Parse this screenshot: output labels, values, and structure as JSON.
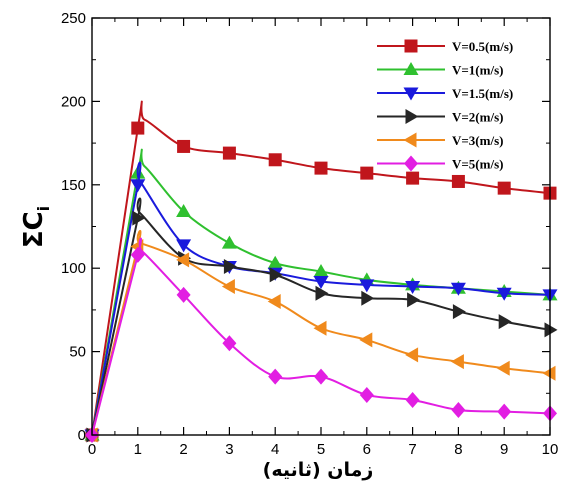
{
  "chart_data": {
    "type": "line",
    "title": "",
    "xlabel": "زمان (ثانیه)",
    "ylabel": "ΣC",
    "ylabel_subscript": "i",
    "xlim": [
      0,
      10
    ],
    "ylim": [
      0,
      250
    ],
    "xticks": [
      "0",
      "1",
      "2",
      "3",
      "4",
      "5",
      "6",
      "7",
      "8",
      "9",
      "10"
    ],
    "yticks": [
      "0",
      "50",
      "100",
      "150",
      "200",
      "250"
    ],
    "grid": false,
    "legend_position": "top-right",
    "series": [
      {
        "name": "V=0.5(m/s)",
        "color": "#c0161c",
        "marker": "square",
        "x": [
          0,
          1,
          2,
          3,
          4,
          5,
          6,
          7,
          8,
          9,
          10
        ],
        "y": [
          0,
          184,
          173,
          169,
          165,
          160,
          157,
          154,
          152,
          148,
          145
        ],
        "peak": [
          1.15,
          189
        ]
      },
      {
        "name": "V=1(m/s)",
        "color": "#2fc02f",
        "marker": "triangle-up",
        "x": [
          0,
          1,
          2,
          3,
          4,
          5,
          6,
          7,
          8,
          9,
          10
        ],
        "y": [
          0,
          157,
          134,
          115,
          103,
          98,
          93,
          90,
          88,
          86,
          84
        ],
        "peak": [
          1.15,
          161
        ]
      },
      {
        "name": "V=1.5(m/s)",
        "color": "#1a1adc",
        "marker": "triangle-down",
        "x": [
          0,
          1,
          2,
          3,
          4,
          5,
          6,
          7,
          8,
          9,
          10
        ],
        "y": [
          0,
          150,
          114,
          101,
          97,
          92,
          90,
          89,
          88,
          85,
          84
        ],
        "peak": [
          1.05,
          152
        ]
      },
      {
        "name": "V=2(m/s)",
        "color": "#262626",
        "marker": "triangle-right",
        "x": [
          0,
          1,
          2,
          3,
          4,
          5,
          6,
          7,
          8,
          9,
          10
        ],
        "y": [
          0,
          130,
          106,
          101,
          96,
          85,
          82,
          81,
          74,
          68,
          63
        ],
        "peak": [
          1.05,
          133
        ]
      },
      {
        "name": "V=3(m/s)",
        "color": "#f08a1c",
        "marker": "triangle-left",
        "x": [
          0,
          1,
          2,
          3,
          4,
          5,
          6,
          7,
          8,
          9,
          10
        ],
        "y": [
          0,
          113,
          105,
          89,
          80,
          64,
          57,
          48,
          44,
          40,
          37
        ],
        "peak": [
          1.05,
          115
        ]
      },
      {
        "name": "V=5(m/s)",
        "color": "#e21ee2",
        "marker": "diamond",
        "x": [
          0,
          1,
          2,
          3,
          4,
          5,
          6,
          7,
          8,
          9,
          10
        ],
        "y": [
          0,
          108,
          84,
          55,
          35,
          35,
          24,
          21,
          15,
          14,
          13
        ],
        "peak": [
          1.1,
          110
        ]
      }
    ]
  }
}
